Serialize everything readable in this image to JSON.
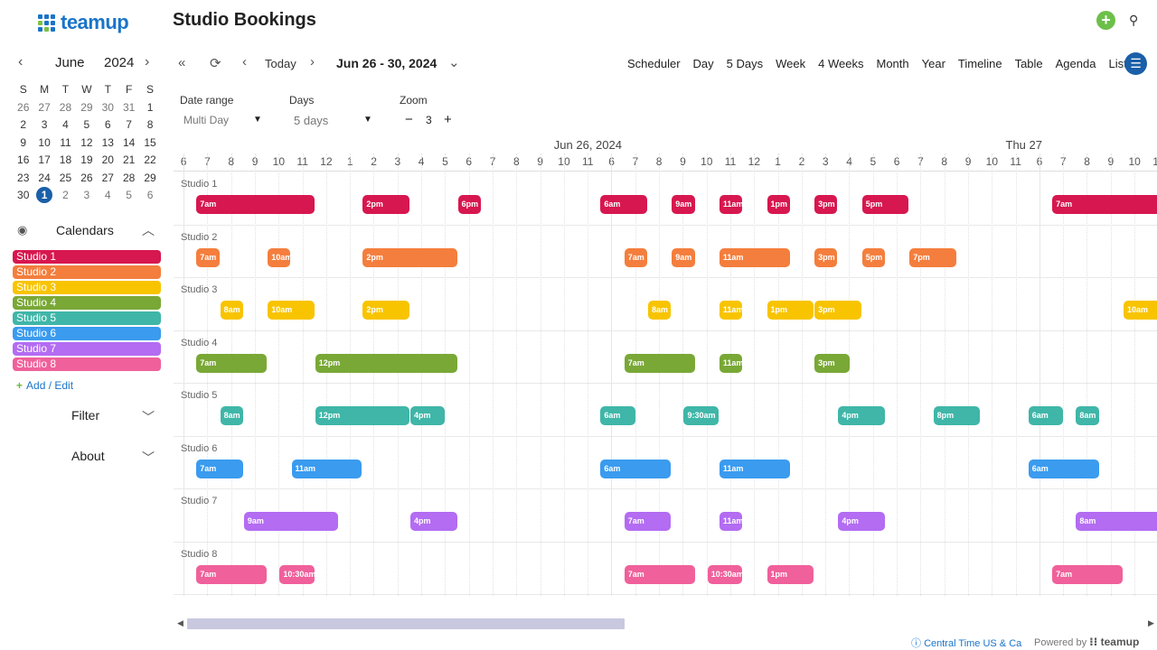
{
  "brand": {
    "logo_text": "teamup"
  },
  "mini_calendar": {
    "month": "June",
    "year": "2024",
    "weekdays": [
      "S",
      "M",
      "T",
      "W",
      "T",
      "F",
      "S"
    ],
    "weeks": [
      [
        {
          "d": "26",
          "o": true
        },
        {
          "d": "27",
          "o": true
        },
        {
          "d": "28",
          "o": true
        },
        {
          "d": "29",
          "o": true
        },
        {
          "d": "30",
          "o": true
        },
        {
          "d": "31",
          "o": true
        },
        {
          "d": "1"
        }
      ],
      [
        {
          "d": "2"
        },
        {
          "d": "3"
        },
        {
          "d": "4"
        },
        {
          "d": "5"
        },
        {
          "d": "6"
        },
        {
          "d": "7"
        },
        {
          "d": "8"
        }
      ],
      [
        {
          "d": "9"
        },
        {
          "d": "10"
        },
        {
          "d": "11"
        },
        {
          "d": "12"
        },
        {
          "d": "13"
        },
        {
          "d": "14"
        },
        {
          "d": "15"
        }
      ],
      [
        {
          "d": "16"
        },
        {
          "d": "17"
        },
        {
          "d": "18"
        },
        {
          "d": "19"
        },
        {
          "d": "20"
        },
        {
          "d": "21"
        },
        {
          "d": "22"
        }
      ],
      [
        {
          "d": "23"
        },
        {
          "d": "24"
        },
        {
          "d": "25"
        },
        {
          "d": "26"
        },
        {
          "d": "27"
        },
        {
          "d": "28"
        },
        {
          "d": "29"
        }
      ],
      [
        {
          "d": "30"
        },
        {
          "d": "1",
          "o": true,
          "today": true
        },
        {
          "d": "2",
          "o": true
        },
        {
          "d": "3",
          "o": true
        },
        {
          "d": "4",
          "o": true
        },
        {
          "d": "5",
          "o": true
        },
        {
          "d": "6",
          "o": true
        }
      ]
    ]
  },
  "calendars": {
    "title": "Calendars",
    "items": [
      {
        "label": "Studio 1",
        "color": "#d7174f"
      },
      {
        "label": "Studio 2",
        "color": "#f47e3d"
      },
      {
        "label": "Studio 3",
        "color": "#f8c400"
      },
      {
        "label": "Studio 4",
        "color": "#79a836"
      },
      {
        "label": "Studio 5",
        "color": "#3fb6a8"
      },
      {
        "label": "Studio 6",
        "color": "#3a9bef"
      },
      {
        "label": "Studio 7",
        "color": "#b36cf2"
      },
      {
        "label": "Studio 8",
        "color": "#f0609b"
      }
    ],
    "add_edit": "Add / Edit"
  },
  "filter_label": "Filter",
  "about_label": "About",
  "header": {
    "title": "Studio Bookings"
  },
  "toolbar": {
    "today": "Today",
    "range": "Jun 26 - 30, 2024",
    "views": [
      "Scheduler",
      "Day",
      "5 Days",
      "Week",
      "4 Weeks",
      "Month",
      "Year",
      "Timeline",
      "Table",
      "Agenda",
      "List"
    ]
  },
  "controls": {
    "date_range_label": "Date range",
    "date_range_value": "Multi Day",
    "days_label": "Days",
    "days_value": "5 days",
    "zoom_label": "Zoom",
    "zoom_value": "3"
  },
  "timeline": {
    "day_headers": [
      {
        "label": "Jun 26, 2024",
        "slot": 16
      },
      {
        "label": "Thu 27",
        "slot": 35
      }
    ],
    "hours": [
      "6",
      "7",
      "8",
      "9",
      "10",
      "11",
      "12",
      "1",
      "2",
      "3",
      "4",
      "5",
      "6",
      "7",
      "8",
      "9",
      "10",
      "11",
      "6",
      "7",
      "8",
      "9",
      "10",
      "11",
      "12",
      "1",
      "2",
      "3",
      "4",
      "5",
      "6",
      "7",
      "8",
      "9",
      "10",
      "11",
      "6",
      "7",
      "8",
      "9",
      "10",
      "11"
    ],
    "lanes": [
      {
        "label": "Studio 1",
        "color": "#d7174f",
        "events": [
          {
            "t": "7am",
            "s": 1,
            "e": 6
          },
          {
            "t": "2pm",
            "s": 8,
            "e": 10
          },
          {
            "t": "6pm",
            "s": 12,
            "e": 13
          },
          {
            "t": "6am",
            "s": 18,
            "e": 20
          },
          {
            "t": "9am",
            "s": 21,
            "e": 22
          },
          {
            "t": "11am",
            "s": 23,
            "e": 24
          },
          {
            "t": "1pm",
            "s": 25,
            "e": 26
          },
          {
            "t": "3pm",
            "s": 27,
            "e": 28
          },
          {
            "t": "5pm",
            "s": 29,
            "e": 31
          },
          {
            "t": "7am",
            "s": 37,
            "e": 42
          }
        ]
      },
      {
        "label": "Studio 2",
        "color": "#f47e3d",
        "events": [
          {
            "t": "7am",
            "s": 1,
            "e": 2
          },
          {
            "t": "10am",
            "s": 4,
            "e": 5
          },
          {
            "t": "2pm",
            "s": 8,
            "e": 12
          },
          {
            "t": "7am",
            "s": 19,
            "e": 20
          },
          {
            "t": "9am",
            "s": 21,
            "e": 22
          },
          {
            "t": "11am",
            "s": 23,
            "e": 26
          },
          {
            "t": "3pm",
            "s": 27,
            "e": 28
          },
          {
            "t": "5pm",
            "s": 29,
            "e": 30
          },
          {
            "t": "7pm",
            "s": 31,
            "e": 33
          }
        ]
      },
      {
        "label": "Studio 3",
        "color": "#f8c400",
        "events": [
          {
            "t": "8am",
            "s": 2,
            "e": 3
          },
          {
            "t": "10am",
            "s": 4,
            "e": 6
          },
          {
            "t": "2pm",
            "s": 8,
            "e": 10
          },
          {
            "t": "8am",
            "s": 20,
            "e": 21
          },
          {
            "t": "11am",
            "s": 23,
            "e": 24
          },
          {
            "t": "1pm",
            "s": 25,
            "e": 27
          },
          {
            "t": "3pm",
            "s": 27,
            "e": 29
          },
          {
            "t": "10am",
            "s": 40,
            "e": 42
          }
        ]
      },
      {
        "label": "Studio 4",
        "color": "#79a836",
        "events": [
          {
            "t": "7am",
            "s": 1,
            "e": 4
          },
          {
            "t": "12pm",
            "s": 6,
            "e": 12
          },
          {
            "t": "7am",
            "s": 19,
            "e": 22
          },
          {
            "t": "11am",
            "s": 23,
            "e": 24
          },
          {
            "t": "3pm",
            "s": 27,
            "e": 28.5
          },
          {
            "t": "",
            "s": 41.9,
            "e": 42.5
          }
        ]
      },
      {
        "label": "Studio 5",
        "color": "#3fb6a8",
        "events": [
          {
            "t": "8am",
            "s": 2,
            "e": 3
          },
          {
            "t": "12pm",
            "s": 6,
            "e": 10
          },
          {
            "t": "4pm",
            "s": 10,
            "e": 11.5
          },
          {
            "t": "6am",
            "s": 18,
            "e": 19.5
          },
          {
            "t": "9:30am",
            "s": 21.5,
            "e": 23
          },
          {
            "t": "4pm",
            "s": 28,
            "e": 30
          },
          {
            "t": "8pm",
            "s": 32,
            "e": 34
          },
          {
            "t": "6am",
            "s": 36,
            "e": 37.5
          },
          {
            "t": "8am",
            "s": 38,
            "e": 39
          }
        ]
      },
      {
        "label": "Studio 6",
        "color": "#3a9bef",
        "events": [
          {
            "t": "7am",
            "s": 1,
            "e": 3
          },
          {
            "t": "11am",
            "s": 5,
            "e": 8
          },
          {
            "t": "6am",
            "s": 18,
            "e": 21
          },
          {
            "t": "11am",
            "s": 23,
            "e": 26
          },
          {
            "t": "6am",
            "s": 36,
            "e": 39
          },
          {
            "t": "",
            "s": 41.9,
            "e": 42.5
          }
        ]
      },
      {
        "label": "Studio 7",
        "color": "#b36cf2",
        "events": [
          {
            "t": "9am",
            "s": 3,
            "e": 7
          },
          {
            "t": "4pm",
            "s": 10,
            "e": 12
          },
          {
            "t": "7am",
            "s": 19,
            "e": 21
          },
          {
            "t": "11am",
            "s": 23,
            "e": 24
          },
          {
            "t": "4pm",
            "s": 28,
            "e": 30
          },
          {
            "t": "8am",
            "s": 38,
            "e": 42
          }
        ]
      },
      {
        "label": "Studio 8",
        "color": "#f0609b",
        "events": [
          {
            "t": "7am",
            "s": 1,
            "e": 4
          },
          {
            "t": "10:30am",
            "s": 4.5,
            "e": 6
          },
          {
            "t": "7am",
            "s": 19,
            "e": 22
          },
          {
            "t": "10:30am",
            "s": 22.5,
            "e": 24
          },
          {
            "t": "1pm",
            "s": 25,
            "e": 27
          },
          {
            "t": "7am",
            "s": 37,
            "e": 40
          }
        ]
      }
    ]
  },
  "footer": {
    "timezone": "Central Time US & Ca",
    "powered_by": "Powered by",
    "powered_brand": "teamup"
  },
  "icons": {
    "add": "plus-circle-icon",
    "search": "search-icon",
    "menu": "menu-icon",
    "eye": "eye-icon",
    "refresh": "refresh-icon"
  }
}
